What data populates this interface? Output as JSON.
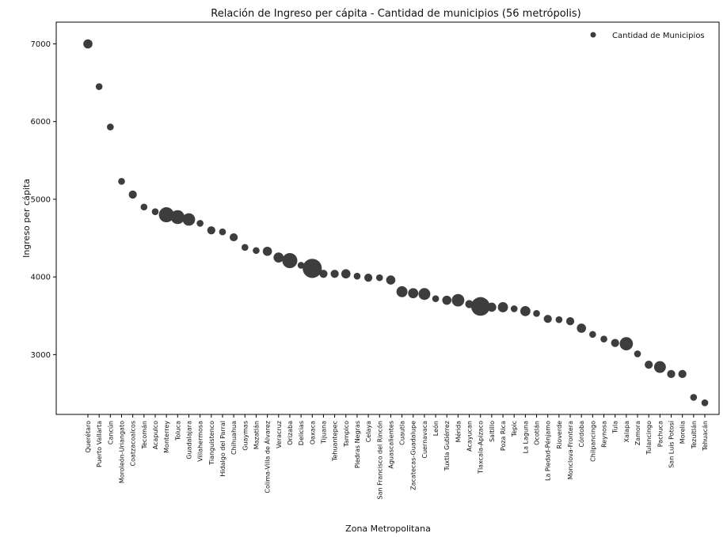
{
  "chart_data": {
    "type": "scatter",
    "title": "Relación de Ingreso per cápita - Cantidad de municipios (56 metrópolis)",
    "xlabel": "Zona Metropolitana",
    "ylabel": "Ingreso per cápita",
    "ylim": [
      2230,
      7280
    ],
    "yticks": [
      "3000",
      "4000",
      "5000",
      "6000",
      "7000"
    ],
    "grid": false,
    "legend": {
      "position": "top-right",
      "label": "Cantidad de Municipios"
    },
    "marker_color": "#3d3d3d",
    "categories": [
      "Querétaro",
      "Puerto Vallarta",
      "Cancún",
      "Moroleón-Uriangato",
      "Coatzacoalcos",
      "Tecomán",
      "Acapulco",
      "Monterrey",
      "Toluca",
      "Guadalajara",
      "Villahermosa",
      "Tianguistenco",
      "Hidalgo del Parral",
      "Chihuahua",
      "Guaymas",
      "Mazatlán",
      "Colima-Villa de Álvarez",
      "Veracruz",
      "Orizaba",
      "Delicias",
      "Oaxaca",
      "Tijuana",
      "Tehuantepec",
      "Tampico",
      "Piedras Negras",
      "Celaya",
      "San Francisco del Rincón",
      "Aguascalientes",
      "Cuautla",
      "Zacatecas-Guadalupe",
      "Cuernavaca",
      "León",
      "Tuxtla Gutiérrez",
      "Mérida",
      "Acayucan",
      "Tlaxcala-Apizaco",
      "Saltillo",
      "Poza Rica",
      "Tepic",
      "La Laguna",
      "Ocotlán",
      "La Piedad-Pénjamo",
      "Rioverde",
      "Monclova-Frontera",
      "Córdoba",
      "Chilpancingo",
      "Reynosa",
      "Tula",
      "Xalapa",
      "Zamora",
      "Tulancingo",
      "Pachuca",
      "San Luis Potosí",
      "Morelia",
      "Tezuitlán",
      "Tehuacán"
    ],
    "y": [
      7000,
      6450,
      5930,
      5230,
      5060,
      4900,
      4840,
      4800,
      4770,
      4740,
      4690,
      4600,
      4580,
      4510,
      4380,
      4340,
      4330,
      4250,
      4210,
      4150,
      4110,
      4040,
      4040,
      4040,
      4010,
      3990,
      3990,
      3960,
      3810,
      3790,
      3780,
      3720,
      3700,
      3700,
      3650,
      3620,
      3610,
      3610,
      3590,
      3560,
      3530,
      3460,
      3450,
      3430,
      3340,
      3260,
      3200,
      3150,
      3140,
      3010,
      2870,
      2840,
      2750,
      2750,
      2450,
      2380
    ],
    "municipios": [
      4,
      2,
      2,
      2,
      3,
      2,
      2,
      12,
      10,
      8,
      2,
      3,
      2,
      3,
      2,
      2,
      4,
      5,
      12,
      2,
      20,
      3,
      3,
      4,
      2,
      3,
      2,
      4,
      6,
      5,
      7,
      2,
      4,
      8,
      3,
      19,
      4,
      5,
      2,
      5,
      2,
      3,
      2,
      3,
      4,
      2,
      2,
      3,
      9,
      2,
      3,
      7,
      3,
      3,
      2,
      2
    ]
  }
}
